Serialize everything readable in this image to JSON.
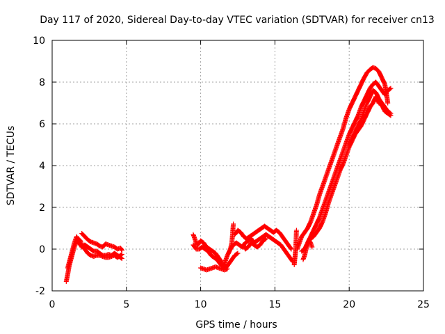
{
  "chart_data": {
    "type": "scatter",
    "title": "Day 117 of 2020, Sidereal Day-to-day VTEC variation (SDTVAR) for receiver cn13",
    "xlabel": "GPS time / hours",
    "ylabel": "SDTVAR / TECUs",
    "xlim": [
      0,
      25
    ],
    "ylim": [
      -2,
      10
    ],
    "x_ticks": [
      0,
      5,
      10,
      15,
      20,
      25
    ],
    "x_tick_labels": [
      "0",
      "5",
      "10",
      "15",
      "20",
      "25"
    ],
    "y_ticks": [
      -2,
      0,
      2,
      4,
      6,
      8,
      10
    ],
    "y_tick_labels": [
      "-2",
      "0",
      "2",
      "4",
      "6",
      "8",
      "10"
    ],
    "grid": true,
    "marker": "+",
    "series": [
      {
        "name": "cn13",
        "color": "#ff0000",
        "tracks": [
          {
            "x": [
              0.95,
              1.05,
              1.15,
              1.3,
              1.45,
              1.6,
              1.75,
              1.9,
              2.0,
              2.2,
              2.4,
              2.6,
              2.8,
              3.0,
              3.2,
              3.4,
              3.6,
              3.8,
              4.0,
              4.2,
              4.4,
              4.6,
              4.7
            ],
            "y": [
              -1.55,
              -1.2,
              -0.8,
              -0.4,
              0.0,
              0.3,
              0.5,
              0.4,
              0.2,
              0.0,
              -0.2,
              -0.3,
              -0.35,
              -0.3,
              -0.3,
              -0.35,
              -0.4,
              -0.4,
              -0.35,
              -0.3,
              -0.4,
              -0.3,
              -0.25
            ]
          },
          {
            "x": [
              1.05,
              1.2,
              1.35,
              1.5,
              1.65,
              1.8,
              2.0,
              2.2,
              2.4,
              2.6,
              2.8,
              3.0,
              3.2,
              3.4,
              3.6,
              3.8,
              4.0,
              4.2,
              4.4,
              4.6,
              4.7
            ],
            "y": [
              -0.9,
              -0.5,
              -0.1,
              0.3,
              0.6,
              0.3,
              0.1,
              0.2,
              0.1,
              0.0,
              -0.1,
              -0.1,
              -0.2,
              -0.3,
              -0.3,
              -0.25,
              -0.3,
              -0.2,
              -0.3,
              -0.4,
              -0.45
            ]
          },
          {
            "x": [
              2.0,
              2.2,
              2.4,
              2.6,
              2.8,
              3.0,
              3.2,
              3.4,
              3.6,
              3.8,
              4.0,
              4.2,
              4.4,
              4.6,
              4.7
            ],
            "y": [
              0.75,
              0.6,
              0.45,
              0.35,
              0.3,
              0.25,
              0.15,
              0.1,
              0.25,
              0.2,
              0.15,
              0.1,
              0.0,
              0.05,
              -0.05
            ]
          },
          {
            "x": [
              9.5,
              9.6,
              9.7,
              9.8,
              10.0,
              10.2,
              10.4,
              10.6,
              10.8,
              11.0,
              11.2,
              11.4,
              11.5,
              11.6,
              11.7,
              11.8,
              12.0,
              12.1,
              12.2
            ],
            "y": [
              0.7,
              0.5,
              0.3,
              0.2,
              0.4,
              0.3,
              0.1,
              0.0,
              -0.1,
              -0.2,
              -0.4,
              -0.6,
              -0.8,
              -0.7,
              -0.5,
              -0.3,
              0.0,
              0.3,
              1.2
            ]
          },
          {
            "x": [
              9.5,
              9.7,
              9.9,
              10.1,
              10.3,
              10.5,
              10.7,
              10.9,
              11.1,
              11.3,
              11.5,
              11.7,
              11.9,
              12.1,
              12.3,
              12.5
            ],
            "y": [
              0.2,
              0.0,
              0.0,
              0.1,
              0.0,
              -0.1,
              -0.3,
              -0.4,
              -0.5,
              -0.7,
              -0.85,
              -0.9,
              -0.7,
              -0.5,
              -0.3,
              -0.2
            ]
          },
          {
            "x": [
              10.0,
              10.2,
              10.4,
              10.6,
              10.8,
              11.0,
              11.2,
              11.4,
              11.6,
              11.8
            ],
            "y": [
              -0.9,
              -0.95,
              -1.0,
              -0.95,
              -0.9,
              -0.85,
              -0.9,
              -0.95,
              -1.0,
              -0.95
            ]
          },
          {
            "x": [
              12.0,
              12.2,
              12.4,
              12.6,
              12.8,
              13.0,
              13.2,
              13.4,
              13.6,
              13.8,
              14.0,
              14.2,
              14.4,
              14.6,
              14.8,
              15.0,
              15.2,
              15.4,
              15.6,
              15.8,
              16.0,
              16.2
            ],
            "y": [
              0.0,
              0.2,
              0.3,
              0.2,
              0.1,
              0.3,
              0.4,
              0.5,
              0.3,
              0.4,
              0.5,
              0.6,
              0.7,
              0.6,
              0.5,
              0.4,
              0.3,
              0.2,
              0.0,
              -0.2,
              -0.4,
              -0.6
            ]
          },
          {
            "x": [
              12.3,
              12.5,
              12.7,
              12.9,
              13.1,
              13.3,
              13.5,
              13.7,
              13.9,
              14.1,
              14.3,
              14.5,
              14.7,
              14.9,
              15.1,
              15.3,
              15.5,
              15.7,
              15.9,
              16.1
            ],
            "y": [
              0.7,
              0.9,
              0.8,
              0.6,
              0.5,
              0.6,
              0.7,
              0.8,
              0.9,
              1.0,
              1.1,
              1.0,
              0.9,
              0.8,
              0.9,
              0.8,
              0.6,
              0.4,
              0.2,
              0.0
            ]
          },
          {
            "x": [
              12.9,
              13.0,
              13.2,
              13.4,
              13.6,
              13.8,
              14.0,
              14.2,
              14.4
            ],
            "y": [
              0.2,
              0.0,
              0.1,
              0.3,
              0.2,
              0.1,
              0.2,
              0.4,
              0.5
            ]
          },
          {
            "x": [
              16.3,
              16.35,
              16.4,
              16.45
            ],
            "y": [
              -0.75,
              -0.4,
              0.0,
              0.9
            ]
          },
          {
            "x": [
              16.5,
              16.6,
              16.7,
              16.8,
              17.0,
              17.2,
              17.4,
              17.6,
              17.8,
              18.0,
              18.2,
              18.4,
              18.6,
              18.8,
              19.0,
              19.2,
              19.4,
              19.6,
              19.8,
              20.0,
              20.2,
              20.4,
              20.6,
              20.8,
              21.0,
              21.2,
              21.4,
              21.6,
              21.8,
              22.0,
              22.2,
              22.4,
              22.5,
              22.6
            ],
            "y": [
              0.0,
              0.2,
              0.4,
              0.6,
              0.8,
              1.0,
              1.3,
              1.7,
              2.1,
              2.6,
              3.0,
              3.4,
              3.8,
              4.2,
              4.6,
              5.0,
              5.4,
              5.8,
              6.3,
              6.7,
              7.0,
              7.3,
              7.6,
              7.9,
              8.2,
              8.45,
              8.6,
              8.7,
              8.65,
              8.5,
              8.2,
              7.9,
              7.5,
              7.0
            ]
          },
          {
            "x": [
              16.8,
              17.0,
              17.2,
              17.4,
              17.6,
              17.8,
              18.0,
              18.2,
              18.4,
              18.6,
              18.8,
              19.0,
              19.2,
              19.4,
              19.6,
              19.8,
              20.0,
              20.2,
              20.4,
              20.6,
              20.8,
              21.0,
              21.2,
              21.4,
              21.6,
              21.8,
              22.0,
              22.2,
              22.4,
              22.6,
              22.8
            ],
            "y": [
              -0.1,
              0.0,
              0.3,
              0.6,
              0.9,
              1.2,
              1.5,
              1.9,
              2.3,
              2.7,
              3.1,
              3.5,
              3.9,
              4.3,
              4.7,
              5.1,
              5.5,
              5.8,
              6.1,
              6.4,
              6.8,
              7.1,
              7.4,
              7.7,
              7.9,
              8.0,
              7.8,
              7.6,
              7.4,
              7.6,
              7.7
            ]
          },
          {
            "x": [
              17.2,
              17.4,
              17.6,
              17.8,
              18.0,
              18.2,
              18.4,
              18.6,
              18.8,
              19.0,
              19.2,
              19.4,
              19.6,
              19.8,
              20.0,
              20.2,
              20.4,
              20.6,
              20.8,
              21.0,
              21.2,
              21.4,
              21.6,
              21.8,
              22.0,
              22.2,
              22.4,
              22.6,
              22.8
            ],
            "y": [
              0.3,
              0.5,
              0.6,
              0.8,
              1.0,
              1.3,
              1.7,
              2.2,
              2.6,
              3.0,
              3.4,
              3.8,
              4.1,
              4.5,
              4.9,
              5.2,
              5.5,
              5.7,
              5.9,
              6.2,
              6.5,
              6.8,
              7.0,
              7.3,
              7.0,
              6.9,
              6.6,
              6.5,
              6.4
            ]
          },
          {
            "x": [
              16.9,
              17.0,
              17.1,
              17.2,
              17.3,
              17.4,
              17.5
            ],
            "y": [
              -0.5,
              -0.3,
              0.0,
              0.2,
              0.4,
              0.3,
              0.1
            ]
          },
          {
            "x": [
              20.0,
              20.2,
              20.4,
              20.6,
              20.8,
              21.0,
              21.2,
              21.4,
              21.6,
              21.8,
              22.0,
              22.2,
              22.4,
              22.6,
              22.8
            ],
            "y": [
              5.0,
              5.3,
              5.6,
              5.9,
              6.2,
              6.6,
              7.0,
              7.3,
              7.6,
              7.5,
              7.2,
              7.0,
              6.8,
              6.6,
              6.5
            ]
          }
        ]
      }
    ]
  }
}
